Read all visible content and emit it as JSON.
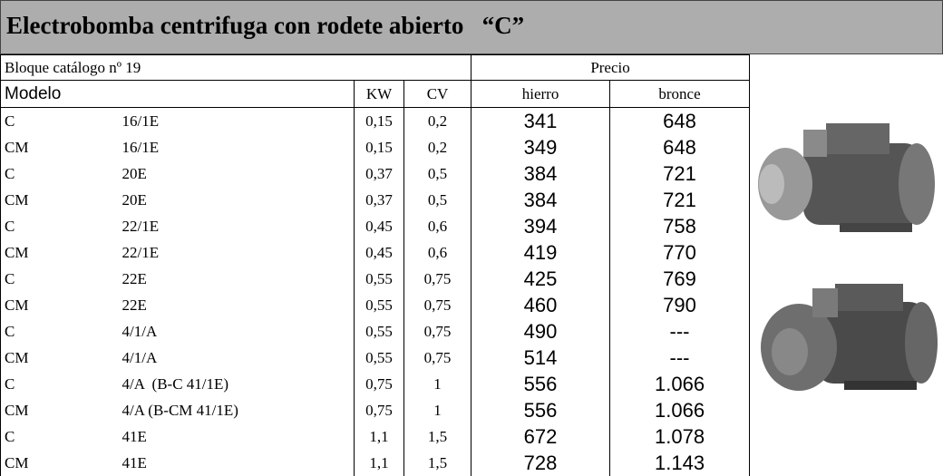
{
  "header": {
    "title": "Electrobomba centrifuga con rodete abierto   “C”"
  },
  "table": {
    "group_row": [
      "Bloque catálogo nº 19",
      "Precio"
    ],
    "columns": [
      "Modelo",
      "KW",
      "CV",
      "hierro",
      "bronce"
    ],
    "rows": [
      [
        "C",
        "16/1E",
        "0,15",
        "0,2",
        "341",
        "648"
      ],
      [
        "CM",
        "16/1E",
        "0,15",
        "0,2",
        "349",
        "648"
      ],
      [
        "C",
        "20E",
        "0,37",
        "0,5",
        "384",
        "721"
      ],
      [
        "CM",
        "20E",
        "0,37",
        "0,5",
        "384",
        "721"
      ],
      [
        "C",
        "22/1E",
        "0,45",
        "0,6",
        "394",
        "758"
      ],
      [
        "CM",
        "22/1E",
        "0,45",
        "0,6",
        "419",
        "770"
      ],
      [
        "C",
        "22E",
        "0,55",
        "0,75",
        "425",
        "769"
      ],
      [
        "CM",
        "22E",
        "0,55",
        "0,75",
        "460",
        "790"
      ],
      [
        "C",
        "4/1/A",
        "0,55",
        "0,75",
        "490",
        "---"
      ],
      [
        "CM",
        "4/1/A",
        "0,55",
        "0,75",
        "514",
        "---"
      ],
      [
        "C",
        "4/A  (B-C 41/1E)",
        "0,75",
        "1",
        "556",
        "1.066"
      ],
      [
        "CM",
        "4/A (B-CM 41/1E)",
        "0,75",
        "1",
        "556",
        "1.066"
      ],
      [
        "C",
        "41E",
        "1,1",
        "1,5",
        "672",
        "1.078"
      ],
      [
        "CM",
        "41E",
        "1,1",
        "1,5",
        "728",
        "1.143"
      ]
    ]
  }
}
